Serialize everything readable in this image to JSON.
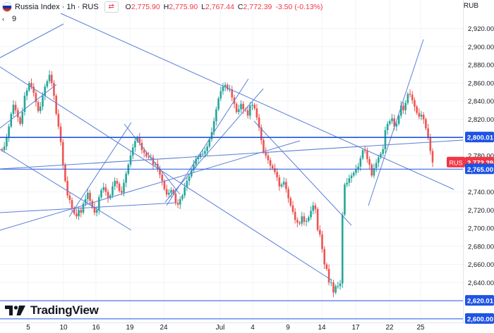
{
  "header": {
    "symbol": "Russia Index",
    "interval": "1h",
    "exchange": "RUS",
    "separator": "·",
    "ohlc": {
      "o_label": "O",
      "o": "2,775.90",
      "h_label": "H",
      "h": "2,775.90",
      "l_label": "L",
      "l": "2,767.44",
      "c_label": "C",
      "c": "2,772.39",
      "change": "-3.50 (-0.13%)"
    },
    "indicator_count": "9"
  },
  "currency": "RUB",
  "logo_text": "TradingView",
  "colors": {
    "up": "#26a69a",
    "down": "#ef5350",
    "trendline": "#5b7fd9",
    "level_line": "#1e53e5",
    "last_price_tag": "#f23645",
    "level_tag": "#1e53e5",
    "axis_text": "#131722"
  },
  "chart_data": {
    "type": "candlestick",
    "symbol": "RUS",
    "ylim": [
      2596,
      2936
    ],
    "y_ticks": [
      2920,
      2900,
      2880,
      2860,
      2840,
      2820,
      2780,
      2740,
      2720,
      2700,
      2680,
      2660,
      2640
    ],
    "y_tick_labels": [
      "2,920.00",
      "2,900.00",
      "2,880.00",
      "2,860.00",
      "2,840.00",
      "2,820.00",
      "2,780.00",
      "2,740.00",
      "2,720.00",
      "2,700.00",
      "2,680.00",
      "2,660.00",
      "2,640.00"
    ],
    "x_ticks": [
      "5",
      "10",
      "16",
      "19",
      "24",
      "Jul",
      "4",
      "9",
      "14",
      "17",
      "22",
      "25"
    ],
    "price_tags": [
      {
        "label": "RUS",
        "value": 2772.39,
        "text": "2,772.39",
        "kind": "last"
      },
      {
        "label": "",
        "value": 2800.01,
        "text": "2,800.01",
        "kind": "level"
      },
      {
        "label": "",
        "value": 2765.0,
        "text": "2,765.00",
        "kind": "level"
      },
      {
        "label": "",
        "value": 2620.01,
        "text": "2,620.01",
        "kind": "level"
      },
      {
        "label": "",
        "value": 2600.0,
        "text": "2,600.00",
        "kind": "level"
      }
    ],
    "horizontal_levels": [
      2800.01,
      2765.0,
      2620.01,
      2600.0
    ],
    "close": [
      2786,
      2790,
      2800,
      2812,
      2826,
      2836,
      2830,
      2822,
      2815,
      2828,
      2846,
      2852,
      2860,
      2856,
      2849,
      2839,
      2829,
      2834,
      2846,
      2856,
      2862,
      2869,
      2860,
      2846,
      2826,
      2812,
      2795,
      2770,
      2752,
      2736,
      2731,
      2722,
      2716,
      2713,
      2720,
      2717,
      2727,
      2732,
      2739,
      2730,
      2723,
      2717,
      2720,
      2734,
      2742,
      2745,
      2740,
      2733,
      2736,
      2746,
      2752,
      2749,
      2741,
      2739,
      2750,
      2760,
      2770,
      2780,
      2789,
      2796,
      2800,
      2794,
      2786,
      2783,
      2779,
      2778,
      2778,
      2770,
      2771,
      2765,
      2759,
      2752,
      2743,
      2737,
      2739,
      2742,
      2738,
      2728,
      2726,
      2732,
      2736,
      2745,
      2752,
      2757,
      2764,
      2770,
      2776,
      2778,
      2782,
      2782,
      2785,
      2790,
      2798,
      2806,
      2818,
      2831,
      2843,
      2851,
      2856,
      2858,
      2853,
      2853,
      2844,
      2837,
      2828,
      2831,
      2837,
      2831,
      2830,
      2824,
      2835,
      2836,
      2832,
      2822,
      2811,
      2797,
      2784,
      2780,
      2775,
      2769,
      2766,
      2762,
      2756,
      2746,
      2748,
      2751,
      2743,
      2733,
      2725,
      2718,
      2709,
      2706,
      2705,
      2713,
      2707,
      2708,
      2712,
      2719,
      2725,
      2721,
      2698,
      2693,
      2677,
      2660,
      2655,
      2640,
      2640,
      2629,
      2636,
      2636,
      2639,
      2715,
      2748,
      2750,
      2755,
      2758,
      2761,
      2765,
      2768,
      2777,
      2786,
      2785,
      2776,
      2770,
      2758,
      2766,
      2772,
      2778,
      2782,
      2787,
      2808,
      2815,
      2818,
      2821,
      2812,
      2815,
      2824,
      2835,
      2830,
      2838,
      2848,
      2847,
      2841,
      2834,
      2827,
      2823,
      2825,
      2820,
      2810,
      2800,
      2785,
      2772.39
    ]
  }
}
